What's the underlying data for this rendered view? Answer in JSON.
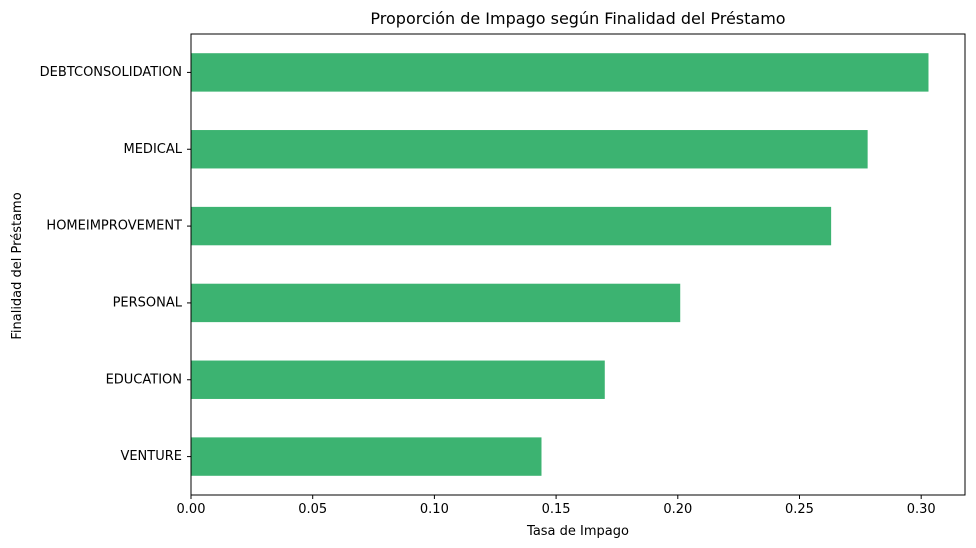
{
  "chart_data": {
    "type": "bar",
    "orientation": "horizontal",
    "title": "Proporción de Impago según Finalidad del Préstamo",
    "xlabel": "Tasa de Impago",
    "ylabel": "Finalidad del Préstamo",
    "categories": [
      "DEBTCONSOLIDATION",
      "MEDICAL",
      "HOMEIMPROVEMENT",
      "PERSONAL",
      "EDUCATION",
      "VENTURE"
    ],
    "values": [
      0.303,
      0.278,
      0.263,
      0.201,
      0.17,
      0.144
    ],
    "xlim": [
      0,
      0.318
    ],
    "xticks": [
      0.0,
      0.05,
      0.1,
      0.15,
      0.2,
      0.25,
      0.3
    ],
    "xtick_labels": [
      "0.00",
      "0.05",
      "0.10",
      "0.15",
      "0.20",
      "0.25",
      "0.30"
    ],
    "grid": false,
    "legend": "none",
    "bar_color": "#3cb371"
  }
}
